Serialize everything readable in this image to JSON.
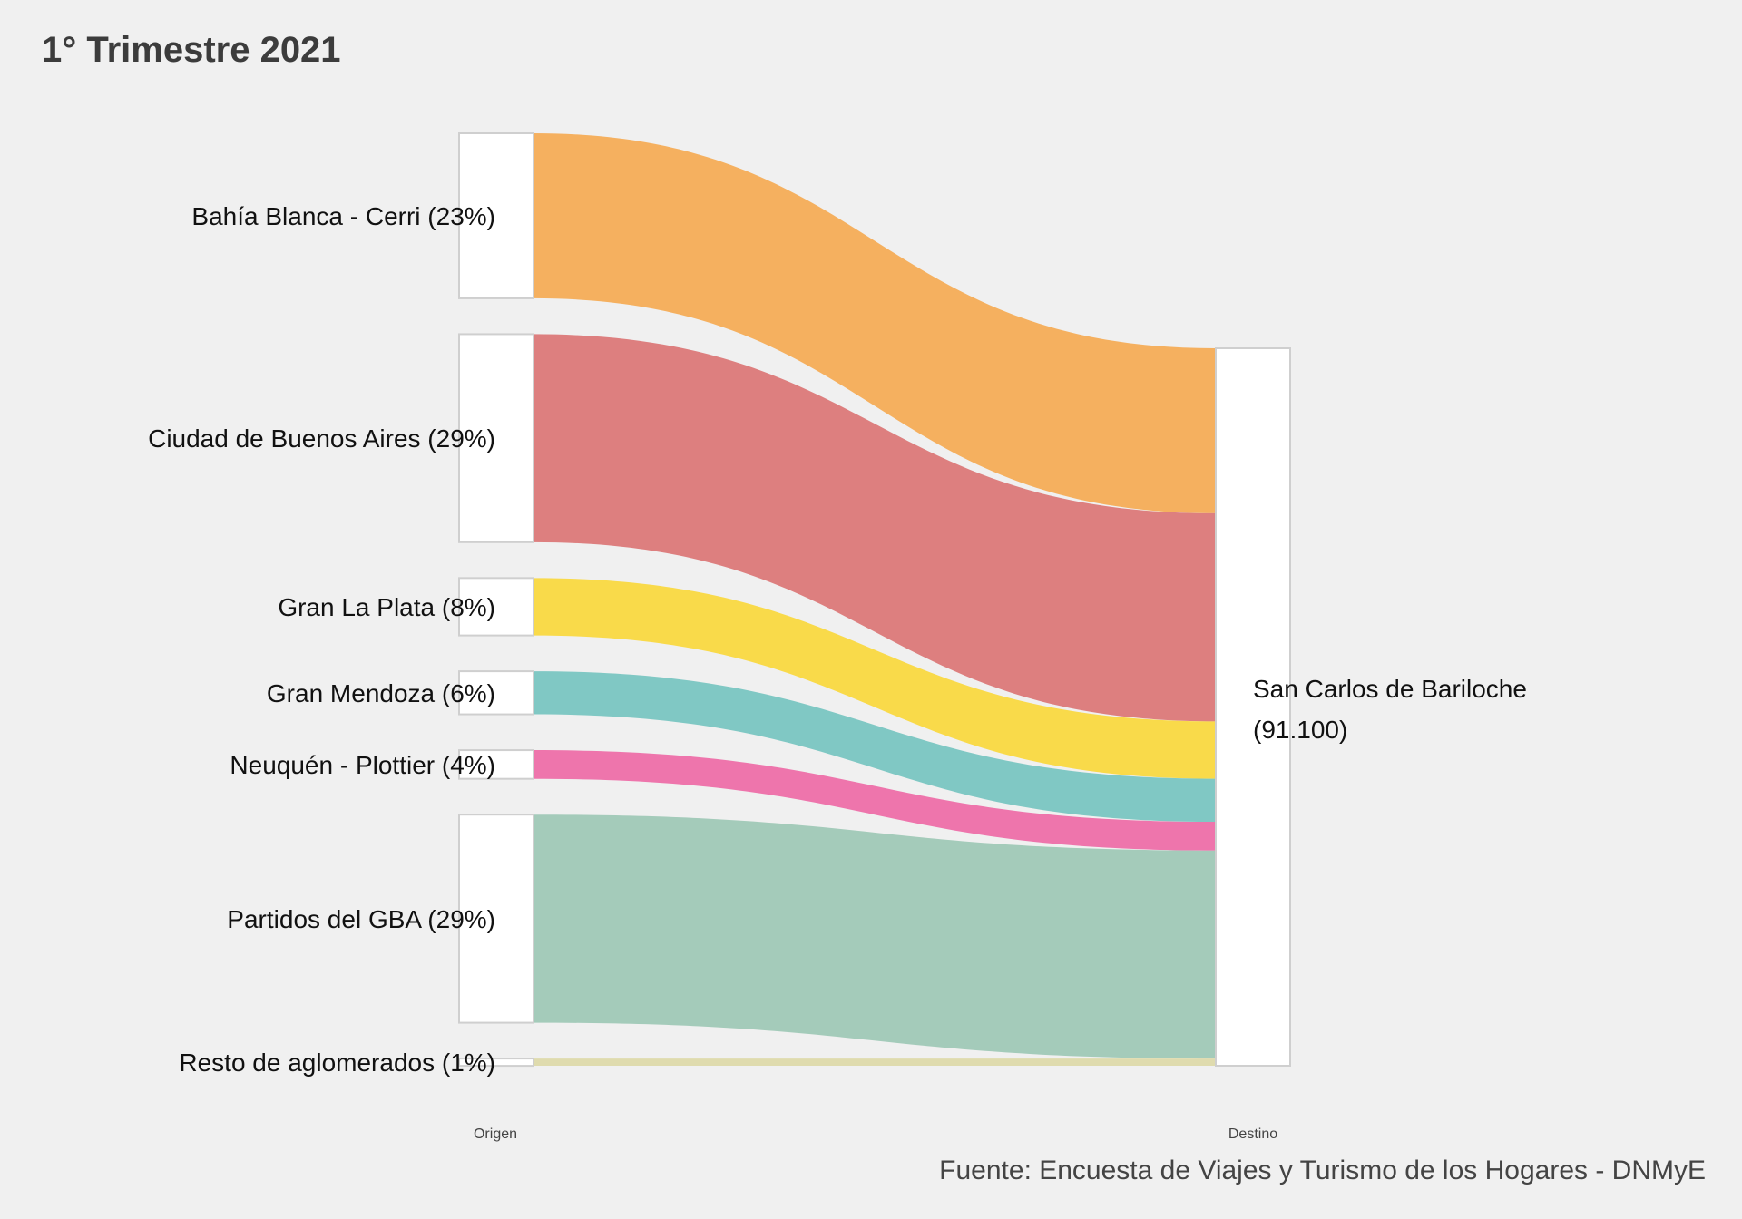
{
  "chart_data": {
    "type": "sankey",
    "title": "1° Trimestre 2021",
    "caption": "Fuente: Encuesta de Viajes y Turismo de los Hogares - DNMyE",
    "axis_labels": [
      "Origen",
      "Destino"
    ],
    "destination": {
      "name": "San Carlos de Bariloche",
      "value_label": "(91.100)",
      "total": 91100
    },
    "origins": [
      {
        "name": "Bahía Blanca - Cerri (23%)",
        "share": 23,
        "color": "#f5b05f"
      },
      {
        "name": "Ciudad de Buenos Aires (29%)",
        "share": 29,
        "color": "#dd7f7f"
      },
      {
        "name": "Gran La Plata (8%)",
        "share": 8,
        "color": "#f9da4a"
      },
      {
        "name": "Gran Mendoza (6%)",
        "share": 6,
        "color": "#80c8c4"
      },
      {
        "name": "Neuquén - Plottier (4%)",
        "share": 4,
        "color": "#ee75ac"
      },
      {
        "name": "Partidos del GBA (29%)",
        "share": 29,
        "color": "#a4cbba"
      },
      {
        "name": "Resto de aglomerados (1%)",
        "share": 1,
        "color": "#dfdbae"
      }
    ]
  }
}
